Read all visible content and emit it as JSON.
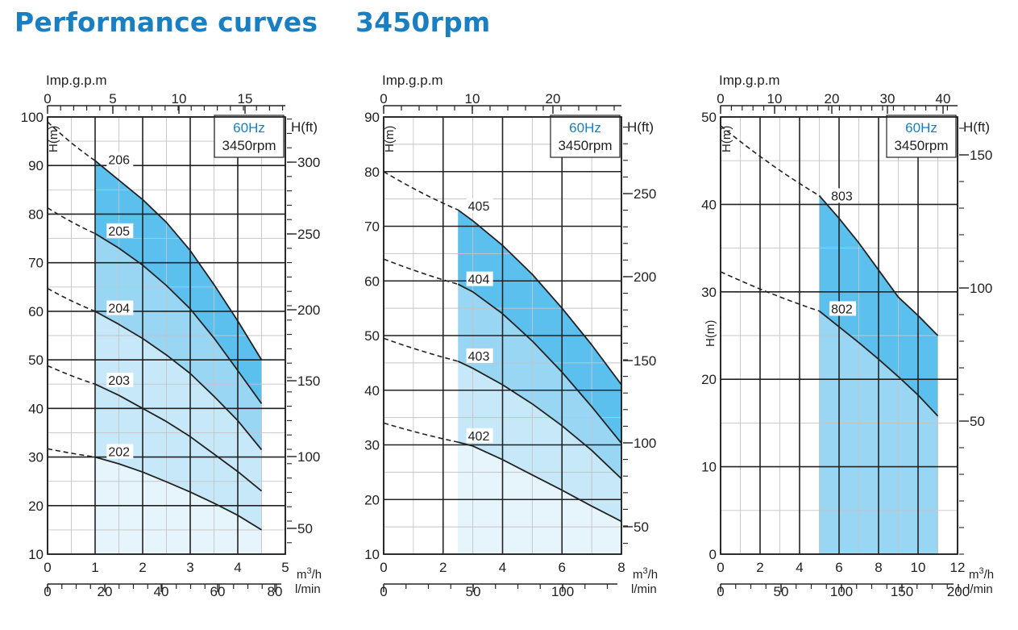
{
  "title_left": "Performance curves",
  "title_right": "3450rpm",
  "colors": {
    "title": "#1a7fc0",
    "band_dark": "#5cc0ee",
    "band_mid": "#99d6f4",
    "band_light": "#c6e8f8",
    "band_lightest": "#e6f5fc",
    "hz_text": "#1a7fc0"
  },
  "chart_data": [
    {
      "type": "line",
      "hz_label": "60Hz",
      "rpm_label": "3450rpm",
      "x_top_label": "Imp.g.p.m",
      "x_top_ticks": [
        "0",
        "5",
        "10",
        "15"
      ],
      "y_left_label": "H(m)",
      "y_right_label": "H(ft)",
      "y_right_ticks": [
        "300",
        "250",
        "200",
        "150",
        "100",
        "50"
      ],
      "x_unit": "m³/h",
      "x_unit_base": "m",
      "x_unit_sup": "3",
      "x_unit_tail": "/h",
      "x_lmin_label": "l/min",
      "x_lmin_ticks": [
        "0",
        "20",
        "40",
        "60",
        "80"
      ],
      "xlim": [
        0,
        5
      ],
      "ylim": [
        10,
        100
      ],
      "x_ticks": [
        "0",
        "1",
        "2",
        "3",
        "4",
        "5"
      ],
      "y_ticks": [
        "10",
        "20",
        "30",
        "40",
        "50",
        "60",
        "70",
        "80",
        "90",
        "100"
      ],
      "operating_range": [
        1,
        4.5
      ],
      "series": [
        {
          "name": "202",
          "dashed_start": [
            0,
            31.7
          ],
          "x": [
            1,
            1.5,
            2,
            2.5,
            3,
            3.5,
            4,
            4.5
          ],
          "y": [
            30,
            28.6,
            26.9,
            24.9,
            22.8,
            20.5,
            18,
            15
          ]
        },
        {
          "name": "203",
          "dashed_start": [
            0,
            48.8
          ],
          "x": [
            1,
            1.5,
            2,
            2.5,
            3,
            3.5,
            4,
            4.5
          ],
          "y": [
            45,
            42.7,
            40,
            37.3,
            34.2,
            30.6,
            27,
            23
          ]
        },
        {
          "name": "204",
          "dashed_start": [
            0,
            64.7
          ],
          "x": [
            1,
            1.5,
            2,
            2.5,
            3,
            3.5,
            4,
            4.5
          ],
          "y": [
            60,
            57.3,
            54.4,
            51,
            47.2,
            42.5,
            37.5,
            31.5
          ]
        },
        {
          "name": "205",
          "dashed_start": [
            0,
            81.3
          ],
          "x": [
            1,
            1.5,
            2,
            2.5,
            3,
            3.5,
            4,
            4.5
          ],
          "y": [
            76,
            73,
            69.5,
            65.3,
            60.5,
            54.5,
            47.8,
            41
          ]
        },
        {
          "name": "206",
          "dashed_start": [
            0,
            99
          ],
          "x": [
            1,
            1.5,
            2,
            2.5,
            3,
            3.5,
            4,
            4.5
          ],
          "y": [
            91,
            87,
            83,
            78.3,
            72.5,
            65.5,
            58,
            50
          ]
        }
      ]
    },
    {
      "type": "line",
      "hz_label": "60Hz",
      "rpm_label": "3450rpm",
      "x_top_label": "Imp.g.p.m",
      "x_top_ticks": [
        "0",
        "10",
        "20"
      ],
      "y_left_label": "H(m)",
      "y_right_label": "H(ft)",
      "y_right_ticks": [
        "250",
        "200",
        "150",
        "100",
        "50"
      ],
      "x_unit": "m³/h",
      "x_unit_base": "m",
      "x_unit_sup": "3",
      "x_unit_tail": "/h",
      "x_lmin_label": "l/min",
      "x_lmin_ticks": [
        "0",
        "50",
        "100"
      ],
      "xlim": [
        0,
        8
      ],
      "ylim": [
        10,
        90
      ],
      "x_ticks": [
        "0",
        "2",
        "4",
        "6",
        "8"
      ],
      "y_ticks": [
        "10",
        "20",
        "30",
        "40",
        "50",
        "60",
        "70",
        "80",
        "90"
      ],
      "operating_range": [
        2.5,
        8
      ],
      "series": [
        {
          "name": "402",
          "dashed_start": [
            0,
            34
          ],
          "x": [
            2.5,
            3,
            4,
            5,
            6,
            7,
            8
          ],
          "y": [
            30.5,
            29.8,
            27.3,
            24.5,
            21.7,
            18.8,
            16
          ]
        },
        {
          "name": "403",
          "dashed_start": [
            0,
            49.5
          ],
          "x": [
            2.5,
            3,
            4,
            5,
            6,
            7,
            8
          ],
          "y": [
            45.3,
            44,
            41,
            37.5,
            33.5,
            29,
            23.8
          ]
        },
        {
          "name": "404",
          "dashed_start": [
            0,
            64
          ],
          "x": [
            2.5,
            3,
            4,
            5,
            6,
            7,
            8
          ],
          "y": [
            59.4,
            58,
            54,
            49,
            43.3,
            37,
            30.3
          ]
        },
        {
          "name": "405",
          "dashed_start": [
            0,
            80
          ],
          "x": [
            2.5,
            3,
            4,
            5,
            6,
            7,
            8
          ],
          "y": [
            73,
            71,
            66.5,
            61.2,
            55,
            48.3,
            41
          ]
        }
      ]
    },
    {
      "type": "line",
      "hz_label": "60Hz",
      "rpm_label": "3450rpm",
      "x_top_label": "Imp.g.p.m",
      "x_top_ticks": [
        "0",
        "10",
        "20",
        "30",
        "40"
      ],
      "y_left_label": "H(m)",
      "y_left_label_mid": "H(m)",
      "y_right_label": "H(ft)",
      "y_right_ticks": [
        "150",
        "100",
        "50"
      ],
      "x_unit": "m³/h",
      "x_unit_base": "m",
      "x_unit_sup": "3",
      "x_unit_tail": "/h",
      "x_lmin_label": "l/min",
      "x_lmin_ticks": [
        "0",
        "50",
        "100",
        "150",
        "200"
      ],
      "xlim": [
        0,
        12
      ],
      "ylim": [
        0,
        50
      ],
      "x_ticks": [
        "0",
        "2",
        "4",
        "6",
        "8",
        "10",
        "12"
      ],
      "y_ticks": [
        "0",
        "10",
        "20",
        "30",
        "40",
        "50"
      ],
      "operating_range": [
        5,
        11
      ],
      "series": [
        {
          "name": "802",
          "dashed_start": [
            0,
            32.3
          ],
          "x": [
            5,
            6,
            7,
            8,
            9,
            10,
            11
          ],
          "y": [
            27.8,
            26,
            24.2,
            22.3,
            20.3,
            18.2,
            15.8
          ]
        },
        {
          "name": "803",
          "dashed_start": [
            0,
            49
          ],
          "x": [
            5,
            6,
            7,
            8,
            9,
            10,
            11
          ],
          "y": [
            41,
            38.4,
            35.6,
            32.5,
            29.4,
            27.3,
            25
          ]
        }
      ]
    }
  ]
}
